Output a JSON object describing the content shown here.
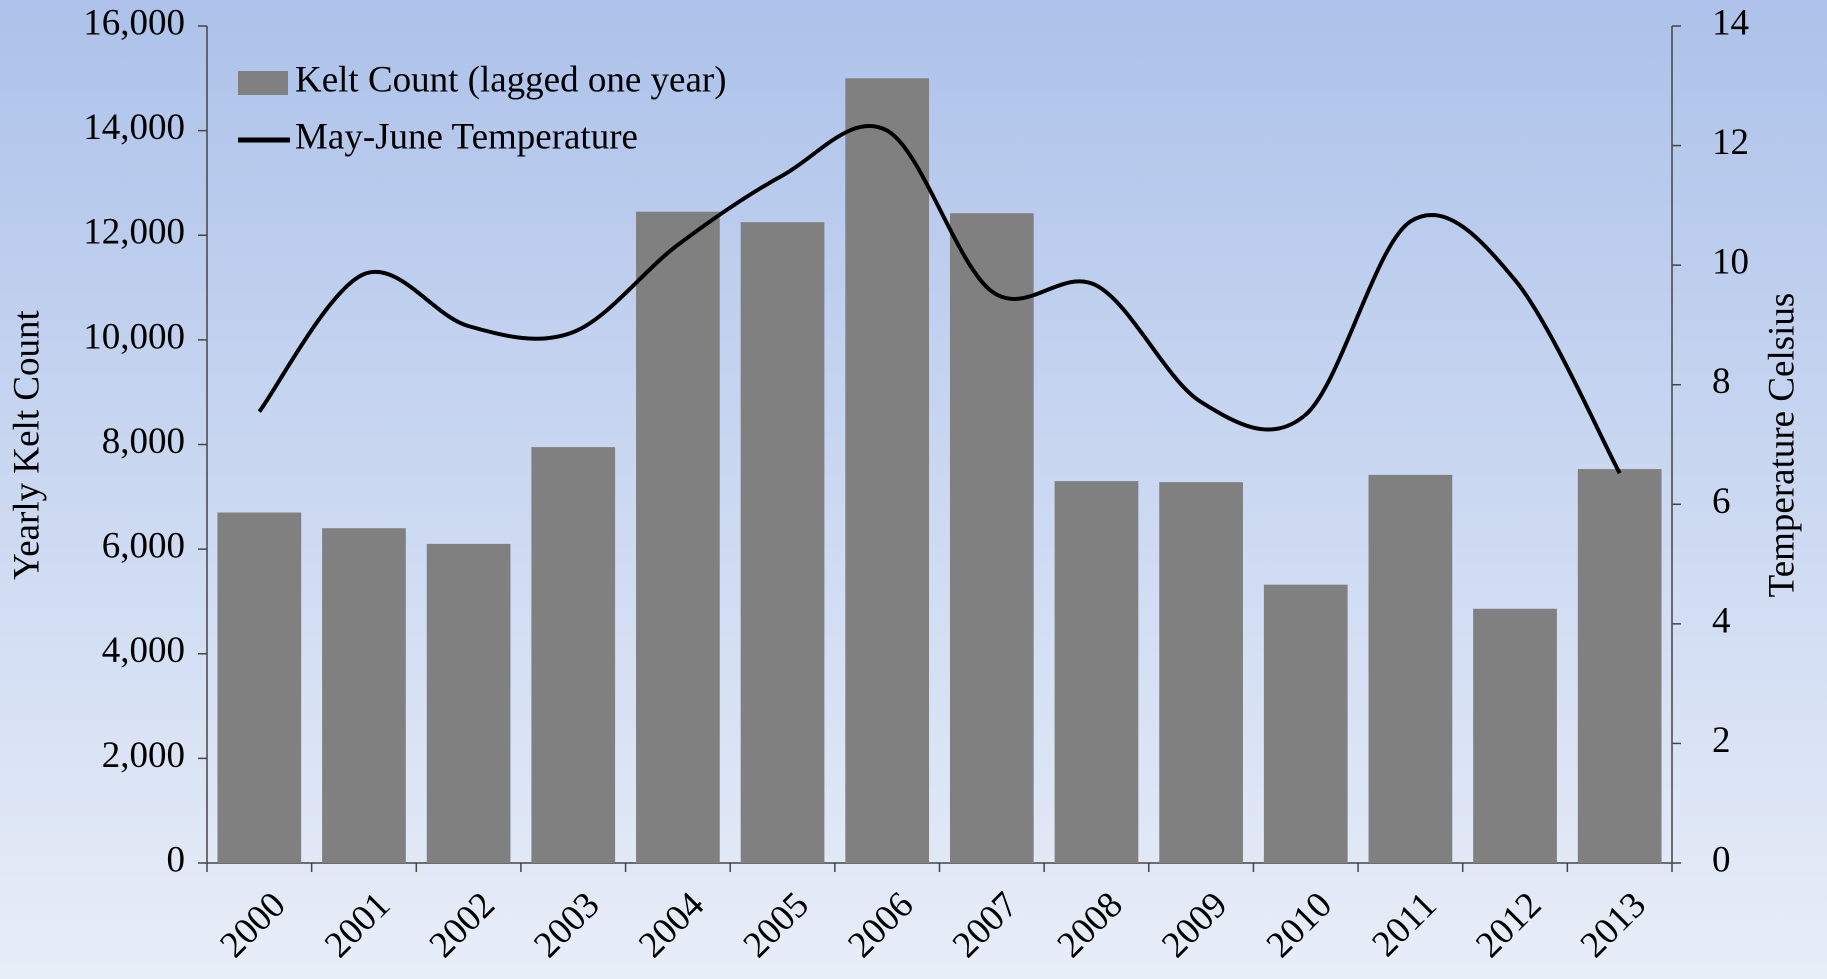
{
  "chart_data": {
    "type": "bar_line",
    "categories": [
      "2000",
      "2001",
      "2002",
      "2003",
      "2004",
      "2005",
      "2006",
      "2007",
      "2008",
      "2009",
      "2010",
      "2011",
      "2012",
      "2013"
    ],
    "ylabel": "Yearly Kelt Count",
    "y2label": "Temperature Celsius",
    "ylim": [
      0,
      16000
    ],
    "yticks": [
      0,
      {
        "value": 2000,
        "label": "2,000"
      },
      {
        "value": 4000,
        "label": "4,000"
      },
      {
        "value": 6000,
        "label": "6,000"
      },
      {
        "value": 8000,
        "label": "8,000"
      },
      {
        "value": 10000,
        "label": "10,000"
      },
      {
        "value": 12000,
        "label": "12,000"
      },
      {
        "value": 14000,
        "label": "14,000"
      },
      {
        "value": 16000,
        "label": "16,000"
      }
    ],
    "y2lim": [
      0,
      14
    ],
    "y2ticks": [
      0,
      2,
      4,
      6,
      8,
      10,
      12,
      14
    ],
    "legend": "upper left",
    "series": [
      {
        "name": "Kelt Count (lagged one year)",
        "type": "bar",
        "color": "#808080",
        "values": [
          6700,
          6400,
          6100,
          7950,
          12450,
          12250,
          15000,
          12420,
          7300,
          7280,
          5320,
          7420,
          4860,
          7530
        ]
      },
      {
        "name": "May-June Temperature",
        "type": "line",
        "axis": "y2",
        "color": "#000000",
        "values": [
          7.55,
          9.85,
          8.98,
          8.88,
          10.34,
          11.5,
          12.25,
          9.56,
          9.66,
          7.71,
          7.5,
          10.73,
          9.75,
          6.52
        ]
      }
    ]
  }
}
